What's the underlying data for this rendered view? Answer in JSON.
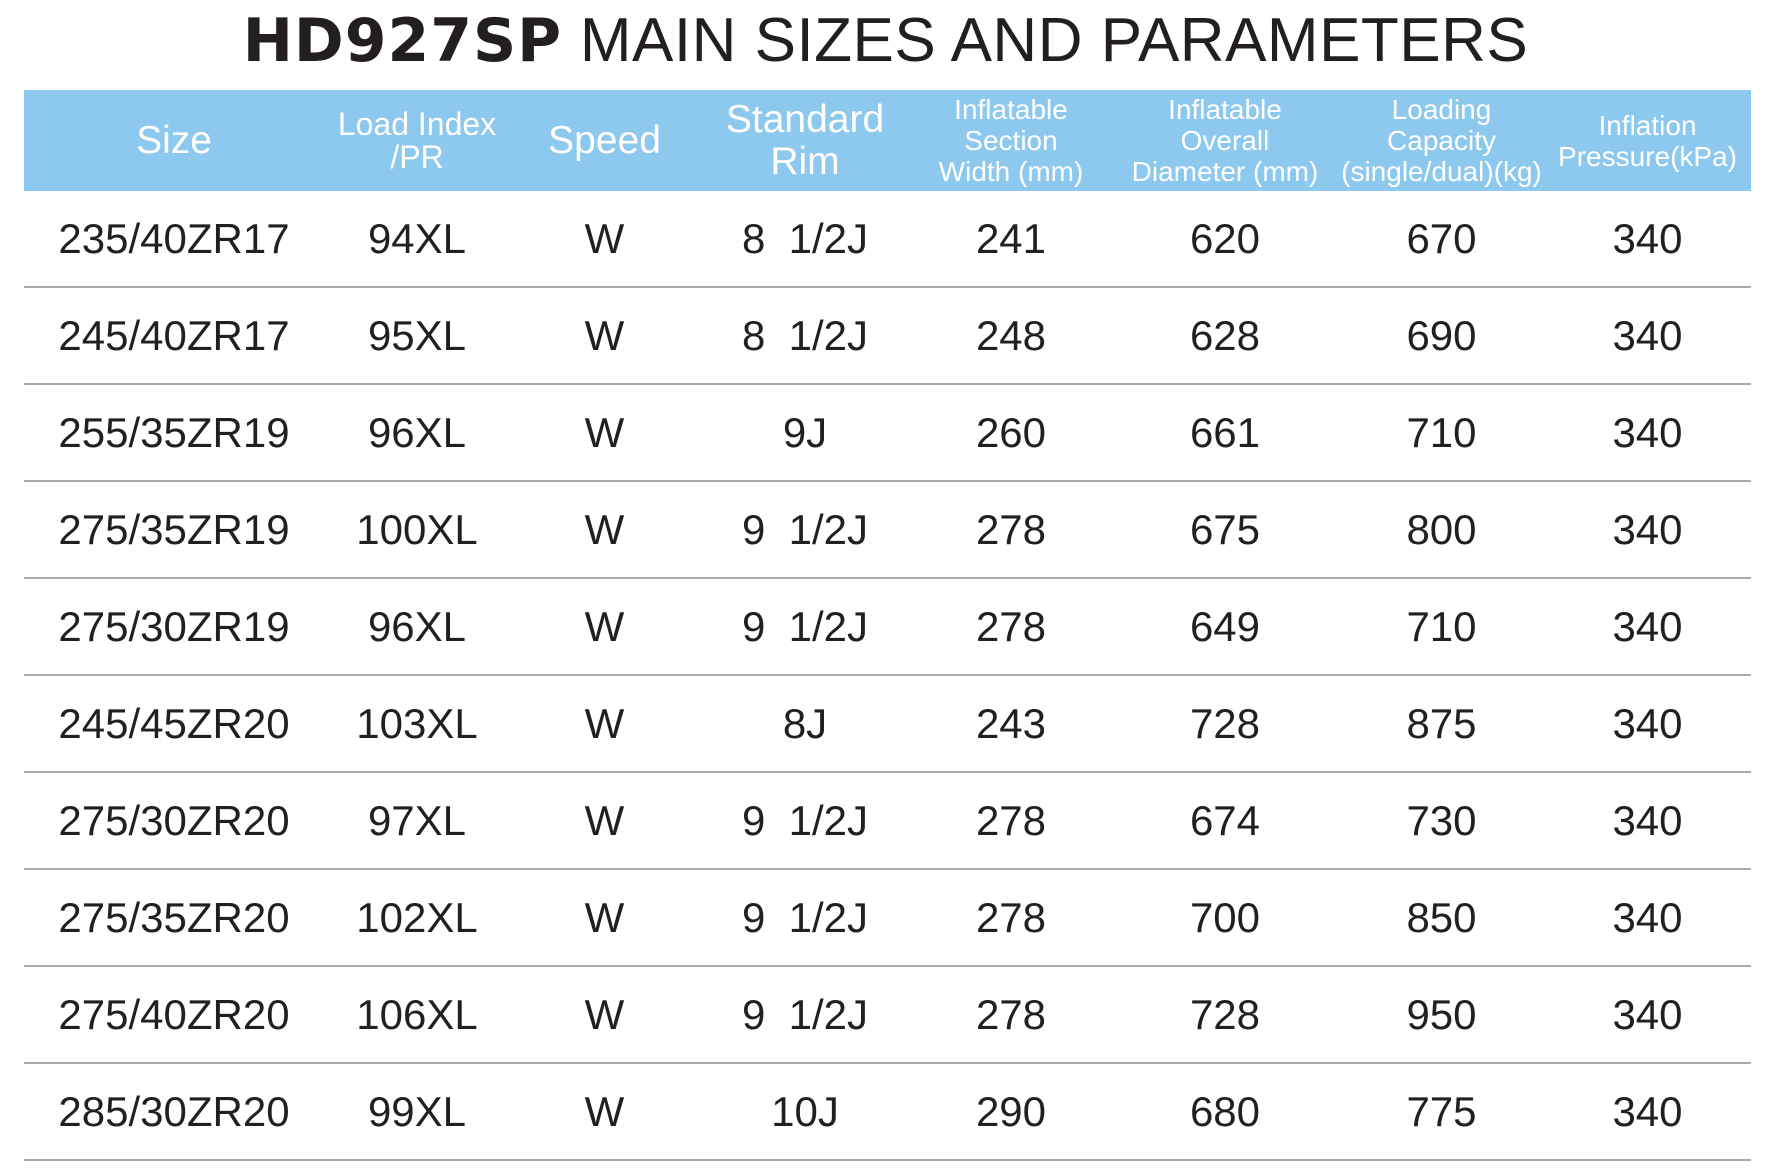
{
  "title": {
    "model": "HD927SP",
    "rest": " MAIN SIZES AND PARAMETERS"
  },
  "colors": {
    "header_bg": "#8dc8ef",
    "header_text": "#ffffff",
    "body_text": "#231f20",
    "row_divider": "#a9a9a9"
  },
  "table": {
    "headers": [
      "Size",
      "Load Index\n/PR",
      "Speed",
      "Standard\nRim",
      "Inflatable\nSection\nWidth (mm)",
      "Inflatable\nOverall\nDiameter (mm)",
      "Loading\nCapacity\n(single/dual)(kg)",
      "Inflation\nPressure(kPa)"
    ],
    "rows": [
      [
        "235/40ZR17",
        "94XL",
        "W",
        "8  1/2J",
        "241",
        "620",
        "670",
        "340"
      ],
      [
        "245/40ZR17",
        "95XL",
        "W",
        "8  1/2J",
        "248",
        "628",
        "690",
        "340"
      ],
      [
        "255/35ZR19",
        "96XL",
        "W",
        "9J",
        "260",
        "661",
        "710",
        "340"
      ],
      [
        "275/35ZR19",
        "100XL",
        "W",
        "9  1/2J",
        "278",
        "675",
        "800",
        "340"
      ],
      [
        "275/30ZR19",
        "96XL",
        "W",
        "9  1/2J",
        "278",
        "649",
        "710",
        "340"
      ],
      [
        "245/45ZR20",
        "103XL",
        "W",
        "8J",
        "243",
        "728",
        "875",
        "340"
      ],
      [
        "275/30ZR20",
        "97XL",
        "W",
        "9  1/2J",
        "278",
        "674",
        "730",
        "340"
      ],
      [
        "275/35ZR20",
        "102XL",
        "W",
        "9  1/2J",
        "278",
        "700",
        "850",
        "340"
      ],
      [
        "275/40ZR20",
        "106XL",
        "W",
        "9  1/2J",
        "278",
        "728",
        "950",
        "340"
      ],
      [
        "285/30ZR20",
        "99XL",
        "W",
        "10J",
        "290",
        "680",
        "775",
        "340"
      ]
    ]
  }
}
